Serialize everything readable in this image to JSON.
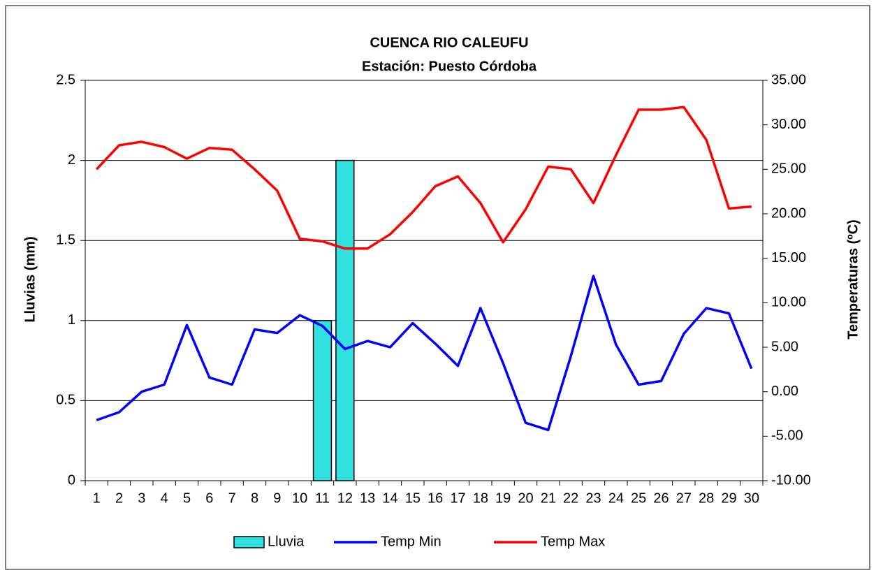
{
  "chart_data": {
    "type": "bar-line",
    "title": "CUENCA RIO CALEUFU",
    "subtitle": "Estación: Puesto Córdoba",
    "y_label": "Lluvias (mm)",
    "y2_label": "Temperaturas (ºC)",
    "categories": [
      "1",
      "2",
      "3",
      "4",
      "5",
      "6",
      "7",
      "8",
      "9",
      "10",
      "11",
      "12",
      "13",
      "14",
      "15",
      "16",
      "17",
      "18",
      "19",
      "20",
      "21",
      "22",
      "23",
      "24",
      "25",
      "26",
      "27",
      "28",
      "29",
      "30"
    ],
    "series": [
      {
        "name": "Lluvia",
        "type": "bar",
        "axis": "y",
        "color": "#33e0e0",
        "values": [
          0,
          0,
          0,
          0,
          0,
          0,
          0,
          0,
          0,
          0,
          1,
          2,
          0,
          0,
          0,
          0,
          0,
          0,
          0,
          0,
          0,
          0,
          0,
          0,
          0,
          0,
          0,
          0,
          0,
          0
        ]
      },
      {
        "name": "Temp Min",
        "type": "line",
        "axis": "y2",
        "color": "#0000ff",
        "values": [
          -3.2,
          -2.3,
          0.0,
          0.8,
          7.5,
          1.6,
          0.8,
          7.0,
          6.6,
          8.6,
          7.4,
          4.8,
          5.7,
          5.0,
          7.7,
          5.4,
          2.9,
          9.4,
          3.2,
          -3.5,
          -4.3,
          4.0,
          13.0,
          5.3,
          0.8,
          1.2,
          6.5,
          9.4,
          8.8,
          2.6
        ]
      },
      {
        "name": "Temp Max",
        "type": "line",
        "axis": "y2",
        "color": "#ff0000",
        "values": [
          25.0,
          27.7,
          28.1,
          27.5,
          26.2,
          27.4,
          27.2,
          25.0,
          22.6,
          17.2,
          16.9,
          16.1,
          16.1,
          17.7,
          20.2,
          23.1,
          24.2,
          21.2,
          16.8,
          20.5,
          25.3,
          25.0,
          21.2,
          26.6,
          31.7,
          31.7,
          32.0,
          28.3,
          20.6,
          20.8
        ]
      }
    ],
    "ylim": [
      0,
      2.5
    ],
    "yticks": [
      0,
      0.5,
      1,
      1.5,
      2,
      2.5
    ],
    "y2lim": [
      -10,
      35
    ],
    "y2ticks": [
      {
        "value": -10,
        "label": "-10.00"
      },
      {
        "value": -5,
        "label": "-5.00"
      },
      {
        "value": 0,
        "label": "0.00"
      },
      {
        "value": 5,
        "label": "5.00"
      },
      {
        "value": 10,
        "label": "10.00"
      },
      {
        "value": 15,
        "label": "15.00"
      },
      {
        "value": 20,
        "label": "20.00"
      },
      {
        "value": 25,
        "label": "25.00"
      },
      {
        "value": 30,
        "label": "30.00"
      },
      {
        "value": 35,
        "label": "35.00"
      }
    ],
    "grid": true,
    "legend": "bottom"
  }
}
